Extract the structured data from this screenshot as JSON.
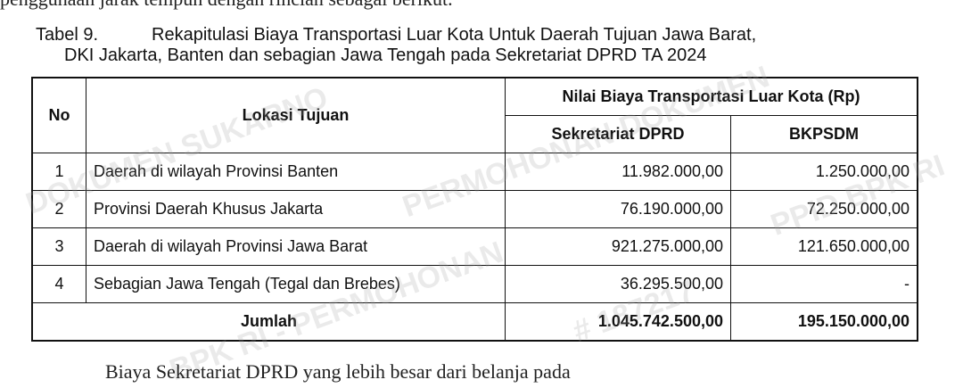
{
  "body_text": {
    "above": "penggunaan jarak tempuh dengan rincian sebagai berikut.",
    "below": "Biaya Sekretariat DPRD yang lebih besar dari belanja pada"
  },
  "caption": {
    "number": "Tabel 9.",
    "line1": "Rekapitulasi Biaya Transportasi Luar Kota Untuk Daerah Tujuan Jawa Barat,",
    "line2": "DKI Jakarta, Banten dan sebagian Jawa Tengah pada Sekretariat DPRD TA 2024"
  },
  "table": {
    "headers": {
      "no": "No",
      "lokasi": "Lokasi Tujuan",
      "group": "Nilai Biaya Transportasi Luar Kota (Rp)",
      "sekretariat": "Sekretariat DPRD",
      "bkpsdm": "BKPSDM"
    },
    "rows": [
      {
        "no": "1",
        "lokasi": "Daerah di wilayah Provinsi Banten",
        "sekretariat": "11.982.000,00",
        "bkpsdm": "1.250.000,00"
      },
      {
        "no": "2",
        "lokasi": "Provinsi Daerah Khusus Jakarta",
        "sekretariat": "76.190.000,00",
        "bkpsdm": "72.250.000,00"
      },
      {
        "no": "3",
        "lokasi": "Daerah di wilayah Provinsi Jawa Barat",
        "sekretariat": "921.275.000,00",
        "bkpsdm": "121.650.000,00"
      },
      {
        "no": "4",
        "lokasi": "Sebagian Jawa Tengah (Tegal dan Brebes)",
        "sekretariat": "36.295.500,00",
        "bkpsdm": "-"
      }
    ],
    "total": {
      "label": "Jumlah",
      "sekretariat": "1.045.742.500,00",
      "bkpsdm": "195.150.000,00"
    }
  },
  "watermark": "DOKUMEN SUKARNO # 187217 - PERMOHONAN DOKUMEN SUKARNO - BPK RI"
}
